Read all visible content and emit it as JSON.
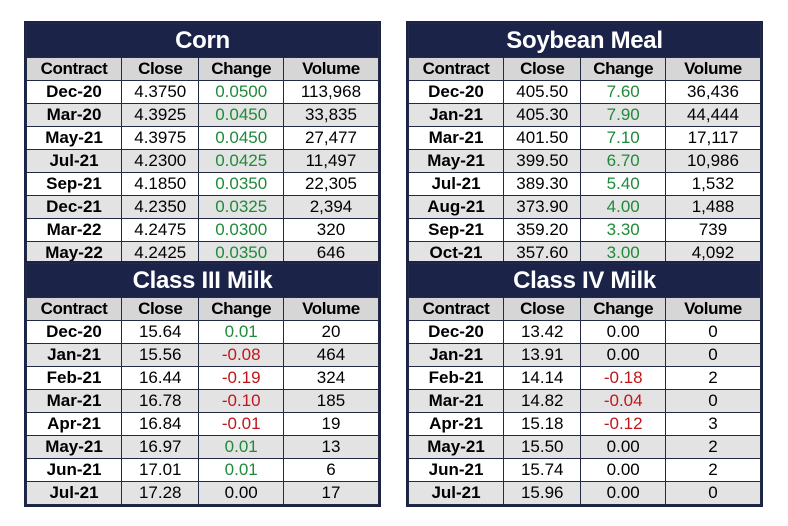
{
  "tables": [
    {
      "title": "Corn",
      "headers": [
        "Contract",
        "Close",
        "Change",
        "Volume"
      ],
      "rows": [
        [
          "Dec-20",
          "4.3750",
          "0.0500",
          "113,968"
        ],
        [
          "Mar-20",
          "4.3925",
          "0.0450",
          "33,835"
        ],
        [
          "May-21",
          "4.3975",
          "0.0450",
          "27,477"
        ],
        [
          "Jul-21",
          "4.2300",
          "0.0425",
          "11,497"
        ],
        [
          "Sep-21",
          "4.1850",
          "0.0350",
          "22,305"
        ],
        [
          "Dec-21",
          "4.2350",
          "0.0325",
          "2,394"
        ],
        [
          "Mar-22",
          "4.2475",
          "0.0300",
          "320"
        ],
        [
          "May-22",
          "4.2425",
          "0.0350",
          "646"
        ]
      ]
    },
    {
      "title": "Soybean Meal",
      "headers": [
        "Contract",
        "Close",
        "Change",
        "Volume"
      ],
      "rows": [
        [
          "Dec-20",
          "405.50",
          "7.60",
          "36,436"
        ],
        [
          "Jan-21",
          "405.30",
          "7.90",
          "44,444"
        ],
        [
          "Mar-21",
          "401.50",
          "7.10",
          "17,117"
        ],
        [
          "May-21",
          "399.50",
          "6.70",
          "10,986"
        ],
        [
          "Jul-21",
          "389.30",
          "5.40",
          "1,532"
        ],
        [
          "Aug-21",
          "373.90",
          "4.00",
          "1,488"
        ],
        [
          "Sep-21",
          "359.20",
          "3.30",
          "739"
        ],
        [
          "Oct-21",
          "357.60",
          "3.00",
          "4,092"
        ]
      ]
    },
    {
      "title": "Class III Milk",
      "headers": [
        "Contract",
        "Close",
        "Change",
        "Volume"
      ],
      "rows": [
        [
          "Dec-20",
          "15.64",
          "0.01",
          "20"
        ],
        [
          "Jan-21",
          "15.56",
          "-0.08",
          "464"
        ],
        [
          "Feb-21",
          "16.44",
          "-0.19",
          "324"
        ],
        [
          "Mar-21",
          "16.78",
          "-0.10",
          "185"
        ],
        [
          "Apr-21",
          "16.84",
          "-0.01",
          "19"
        ],
        [
          "May-21",
          "16.97",
          "0.01",
          "13"
        ],
        [
          "Jun-21",
          "17.01",
          "0.01",
          "6"
        ],
        [
          "Jul-21",
          "17.28",
          "0.00",
          "17"
        ]
      ]
    },
    {
      "title": "Class IV Milk",
      "headers": [
        "Contract",
        "Close",
        "Change",
        "Volume"
      ],
      "rows": [
        [
          "Dec-20",
          "13.42",
          "0.00",
          "0"
        ],
        [
          "Jan-21",
          "13.91",
          "0.00",
          "0"
        ],
        [
          "Feb-21",
          "14.14",
          "-0.18",
          "2"
        ],
        [
          "Mar-21",
          "14.82",
          "-0.04",
          "0"
        ],
        [
          "Apr-21",
          "15.18",
          "-0.12",
          "3"
        ],
        [
          "May-21",
          "15.50",
          "0.00",
          "2"
        ],
        [
          "Jun-21",
          "15.74",
          "0.00",
          "2"
        ],
        [
          "Jul-21",
          "15.96",
          "0.00",
          "0"
        ]
      ]
    }
  ],
  "colors": {
    "header_bg": "#1c2348",
    "positive": "#1f8a3a",
    "negative": "#c0161b",
    "stripe": "#e3e3e3"
  }
}
